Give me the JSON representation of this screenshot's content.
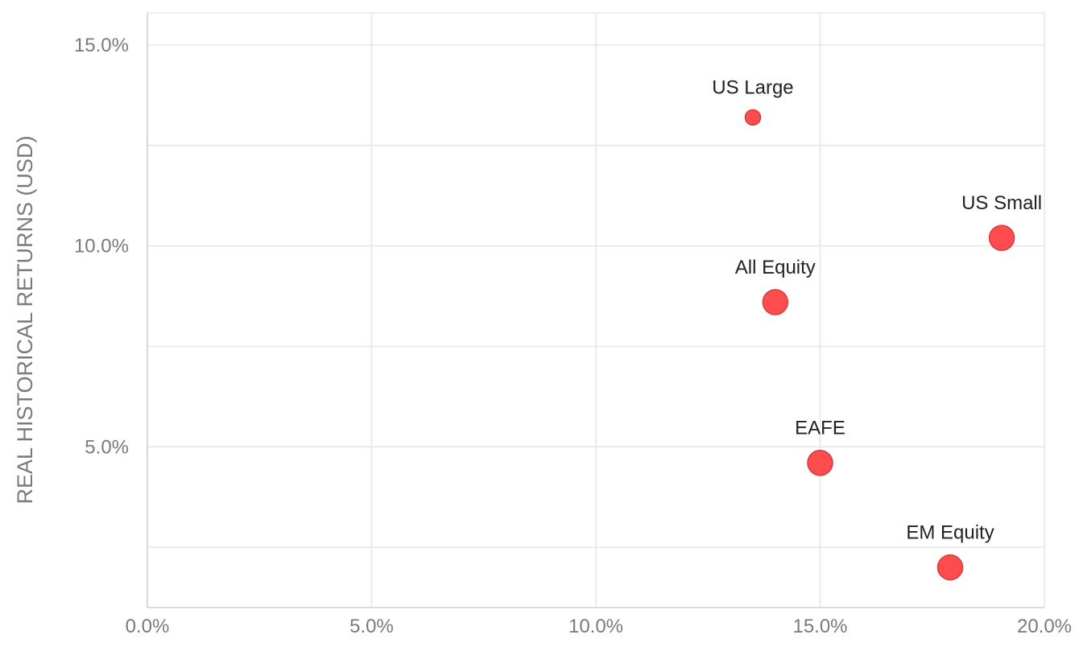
{
  "chart_data": {
    "type": "scatter",
    "title": "",
    "xlabel": "",
    "ylabel": "REAL HISTORICAL RETURNS (USD)",
    "xlim": [
      0,
      20
    ],
    "ylim": [
      1.0,
      15.8
    ],
    "x_ticks": [
      0,
      5,
      10,
      15,
      20
    ],
    "x_tick_labels": [
      "0.0%",
      "5.0%",
      "10.0%",
      "15.0%",
      "20.0%"
    ],
    "y_ticks": [
      5,
      10,
      15
    ],
    "y_tick_labels": [
      "5.0%",
      "10.0%",
      "15.0%"
    ],
    "grid": true,
    "legend": "none",
    "series": [
      {
        "points": [
          {
            "label": "US Large",
            "x": 13.5,
            "y": 13.2,
            "size": "small"
          },
          {
            "label": "US Small",
            "x": 19.05,
            "y": 10.2,
            "size": "large"
          },
          {
            "label": "All Equity",
            "x": 14.0,
            "y": 8.6,
            "size": "large"
          },
          {
            "label": "EAFE",
            "x": 15.0,
            "y": 4.6,
            "size": "large"
          },
          {
            "label": "EM Equity",
            "x": 17.9,
            "y": 2.0,
            "size": "large"
          }
        ]
      }
    ]
  },
  "colors": {
    "point_fill": "#ff4d4f",
    "point_stroke": "#d93a3a",
    "grid": "#e6e6e6",
    "tick_label": "#7a7a7a",
    "point_label": "#222222"
  }
}
